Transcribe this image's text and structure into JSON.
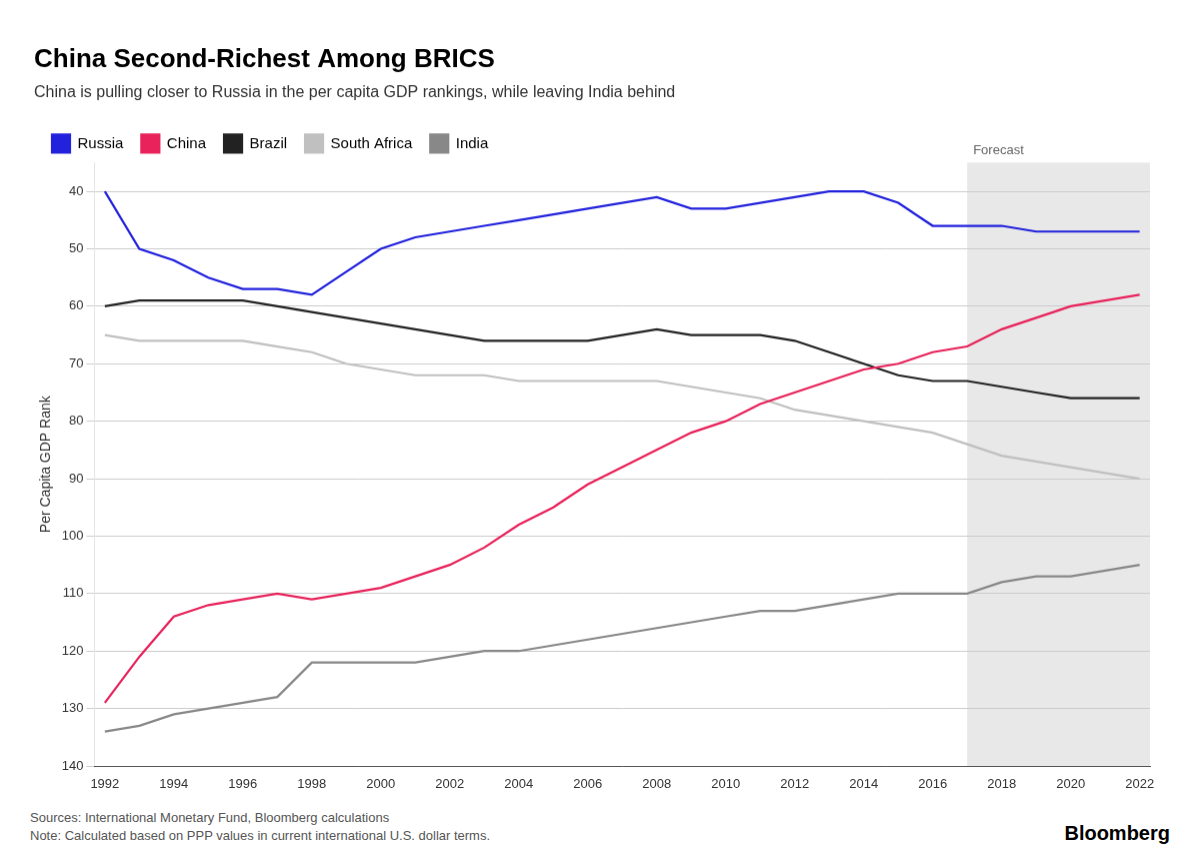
{
  "chart_data": {
    "type": "line",
    "title": "China Second-Richest Among BRICS",
    "subtitle": "China is pulling closer to Russia in the per capita GDP rankings, while leaving India behind",
    "y_label": "Per Capita GDP Rank",
    "source": "Sources: International Monetary Fund, Bloomberg calculations\nNote: Calculated based on PPP values in current international U.S. dollar terms.",
    "credit": "Bloomberg",
    "x": [
      1992,
      1993,
      1994,
      1995,
      1996,
      1997,
      1998,
      1999,
      2000,
      2001,
      2002,
      2003,
      2004,
      2005,
      2006,
      2007,
      2008,
      2009,
      2010,
      2011,
      2012,
      2013,
      2014,
      2015,
      2016,
      2017,
      2018,
      2019,
      2020,
      2021,
      2022
    ],
    "series": [
      {
        "name": "Russia",
        "color": "#2222dd",
        "values": [
          40,
          50,
          52,
          55,
          57,
          57,
          58,
          54,
          50,
          48,
          47,
          46,
          45,
          44,
          43,
          42,
          41,
          43,
          43,
          42,
          41,
          40,
          40,
          42,
          46,
          46,
          46,
          47,
          47,
          47,
          47
        ]
      },
      {
        "name": "China",
        "color": "#e8225a",
        "values": [
          129,
          121,
          114,
          112,
          111,
          110,
          111,
          110,
          109,
          107,
          105,
          102,
          98,
          95,
          91,
          88,
          85,
          82,
          80,
          77,
          75,
          73,
          71,
          70,
          68,
          67,
          64,
          62,
          60,
          59,
          58
        ]
      },
      {
        "name": "Brazil",
        "color": "#222222",
        "values": [
          60,
          59,
          59,
          59,
          59,
          60,
          61,
          62,
          63,
          64,
          65,
          66,
          66,
          66,
          66,
          65,
          64,
          65,
          65,
          65,
          66,
          68,
          70,
          72,
          73,
          73,
          74,
          75,
          76,
          76,
          76
        ]
      },
      {
        "name": "South Africa",
        "color": "#c0c0c0",
        "values": [
          65,
          66,
          66,
          66,
          66,
          67,
          68,
          70,
          71,
          72,
          72,
          72,
          73,
          73,
          73,
          73,
          73,
          74,
          75,
          76,
          78,
          79,
          80,
          81,
          82,
          84,
          86,
          87,
          88,
          89,
          90
        ]
      },
      {
        "name": "India",
        "color": "#888888",
        "values": [
          134,
          133,
          131,
          130,
          129,
          128,
          122,
          122,
          122,
          122,
          121,
          120,
          120,
          119,
          118,
          117,
          116,
          115,
          114,
          113,
          113,
          112,
          111,
          110,
          110,
          110,
          108,
          107,
          107,
          106,
          105
        ]
      }
    ],
    "xlim": [
      1991.7,
      2022.3
    ],
    "xticks": [
      1992,
      1994,
      1996,
      1998,
      2000,
      2002,
      2004,
      2006,
      2008,
      2010,
      2012,
      2014,
      2016,
      2018,
      2020,
      2022
    ],
    "ylim": [
      140,
      35
    ],
    "yticks": [
      40,
      50,
      60,
      70,
      80,
      90,
      100,
      110,
      120,
      130,
      140
    ],
    "grid": "y",
    "legend": "top",
    "annotations": [
      {
        "text": "Forecast",
        "x_start": 2017,
        "color": "#e8e8e8"
      }
    ]
  }
}
